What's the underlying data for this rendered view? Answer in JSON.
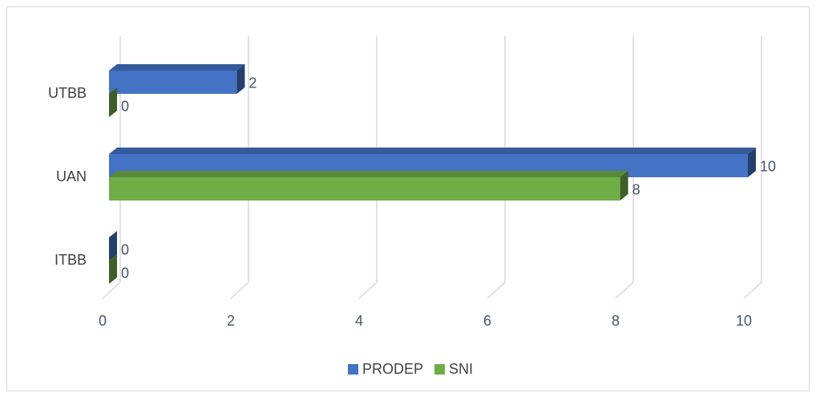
{
  "chart_data": {
    "type": "bar3d_horizontal",
    "categories": [
      "UTBB",
      "UAN",
      "ITBB"
    ],
    "series": [
      {
        "name": "PRODEP",
        "color": "#4472c4",
        "values": [
          2,
          10,
          0
        ]
      },
      {
        "name": "SNI",
        "color": "#70ad47",
        "values": [
          0,
          8,
          0
        ]
      }
    ],
    "xlim": [
      0,
      10
    ],
    "xticks": [
      0,
      2,
      4,
      6,
      8,
      10
    ],
    "grid": true,
    "legend": "bottom"
  }
}
